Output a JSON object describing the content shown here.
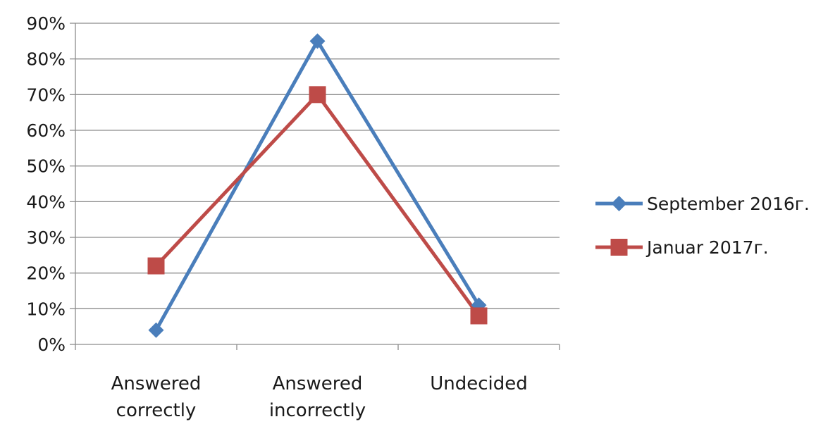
{
  "chart_data": {
    "type": "line",
    "title": "",
    "xlabel": "",
    "ylabel": "",
    "ylim": [
      0,
      0.9
    ],
    "y_ticks": [
      {
        "value": 0.0,
        "label": "0%"
      },
      {
        "value": 0.1,
        "label": "10%"
      },
      {
        "value": 0.2,
        "label": "20%"
      },
      {
        "value": 0.3,
        "label": "30%"
      },
      {
        "value": 0.4,
        "label": "40%"
      },
      {
        "value": 0.5,
        "label": "50%"
      },
      {
        "value": 0.6,
        "label": "60%"
      },
      {
        "value": 0.7,
        "label": "70%"
      },
      {
        "value": 0.8,
        "label": "80%"
      },
      {
        "value": 0.9,
        "label": "90%"
      }
    ],
    "grid": true,
    "legend_position": "right",
    "categories": [
      [
        "Answered",
        "correctly"
      ],
      [
        "Answered",
        "incorrectly"
      ],
      [
        "Undecided"
      ]
    ],
    "series": [
      {
        "name": "September 2016г.",
        "values": [
          0.04,
          0.85,
          0.11
        ],
        "color": "#4a7ebb",
        "marker": "diamond"
      },
      {
        "name": "Januar 2017г.",
        "values": [
          0.22,
          0.7,
          0.08
        ],
        "color": "#be4b48",
        "marker": "square"
      }
    ]
  }
}
